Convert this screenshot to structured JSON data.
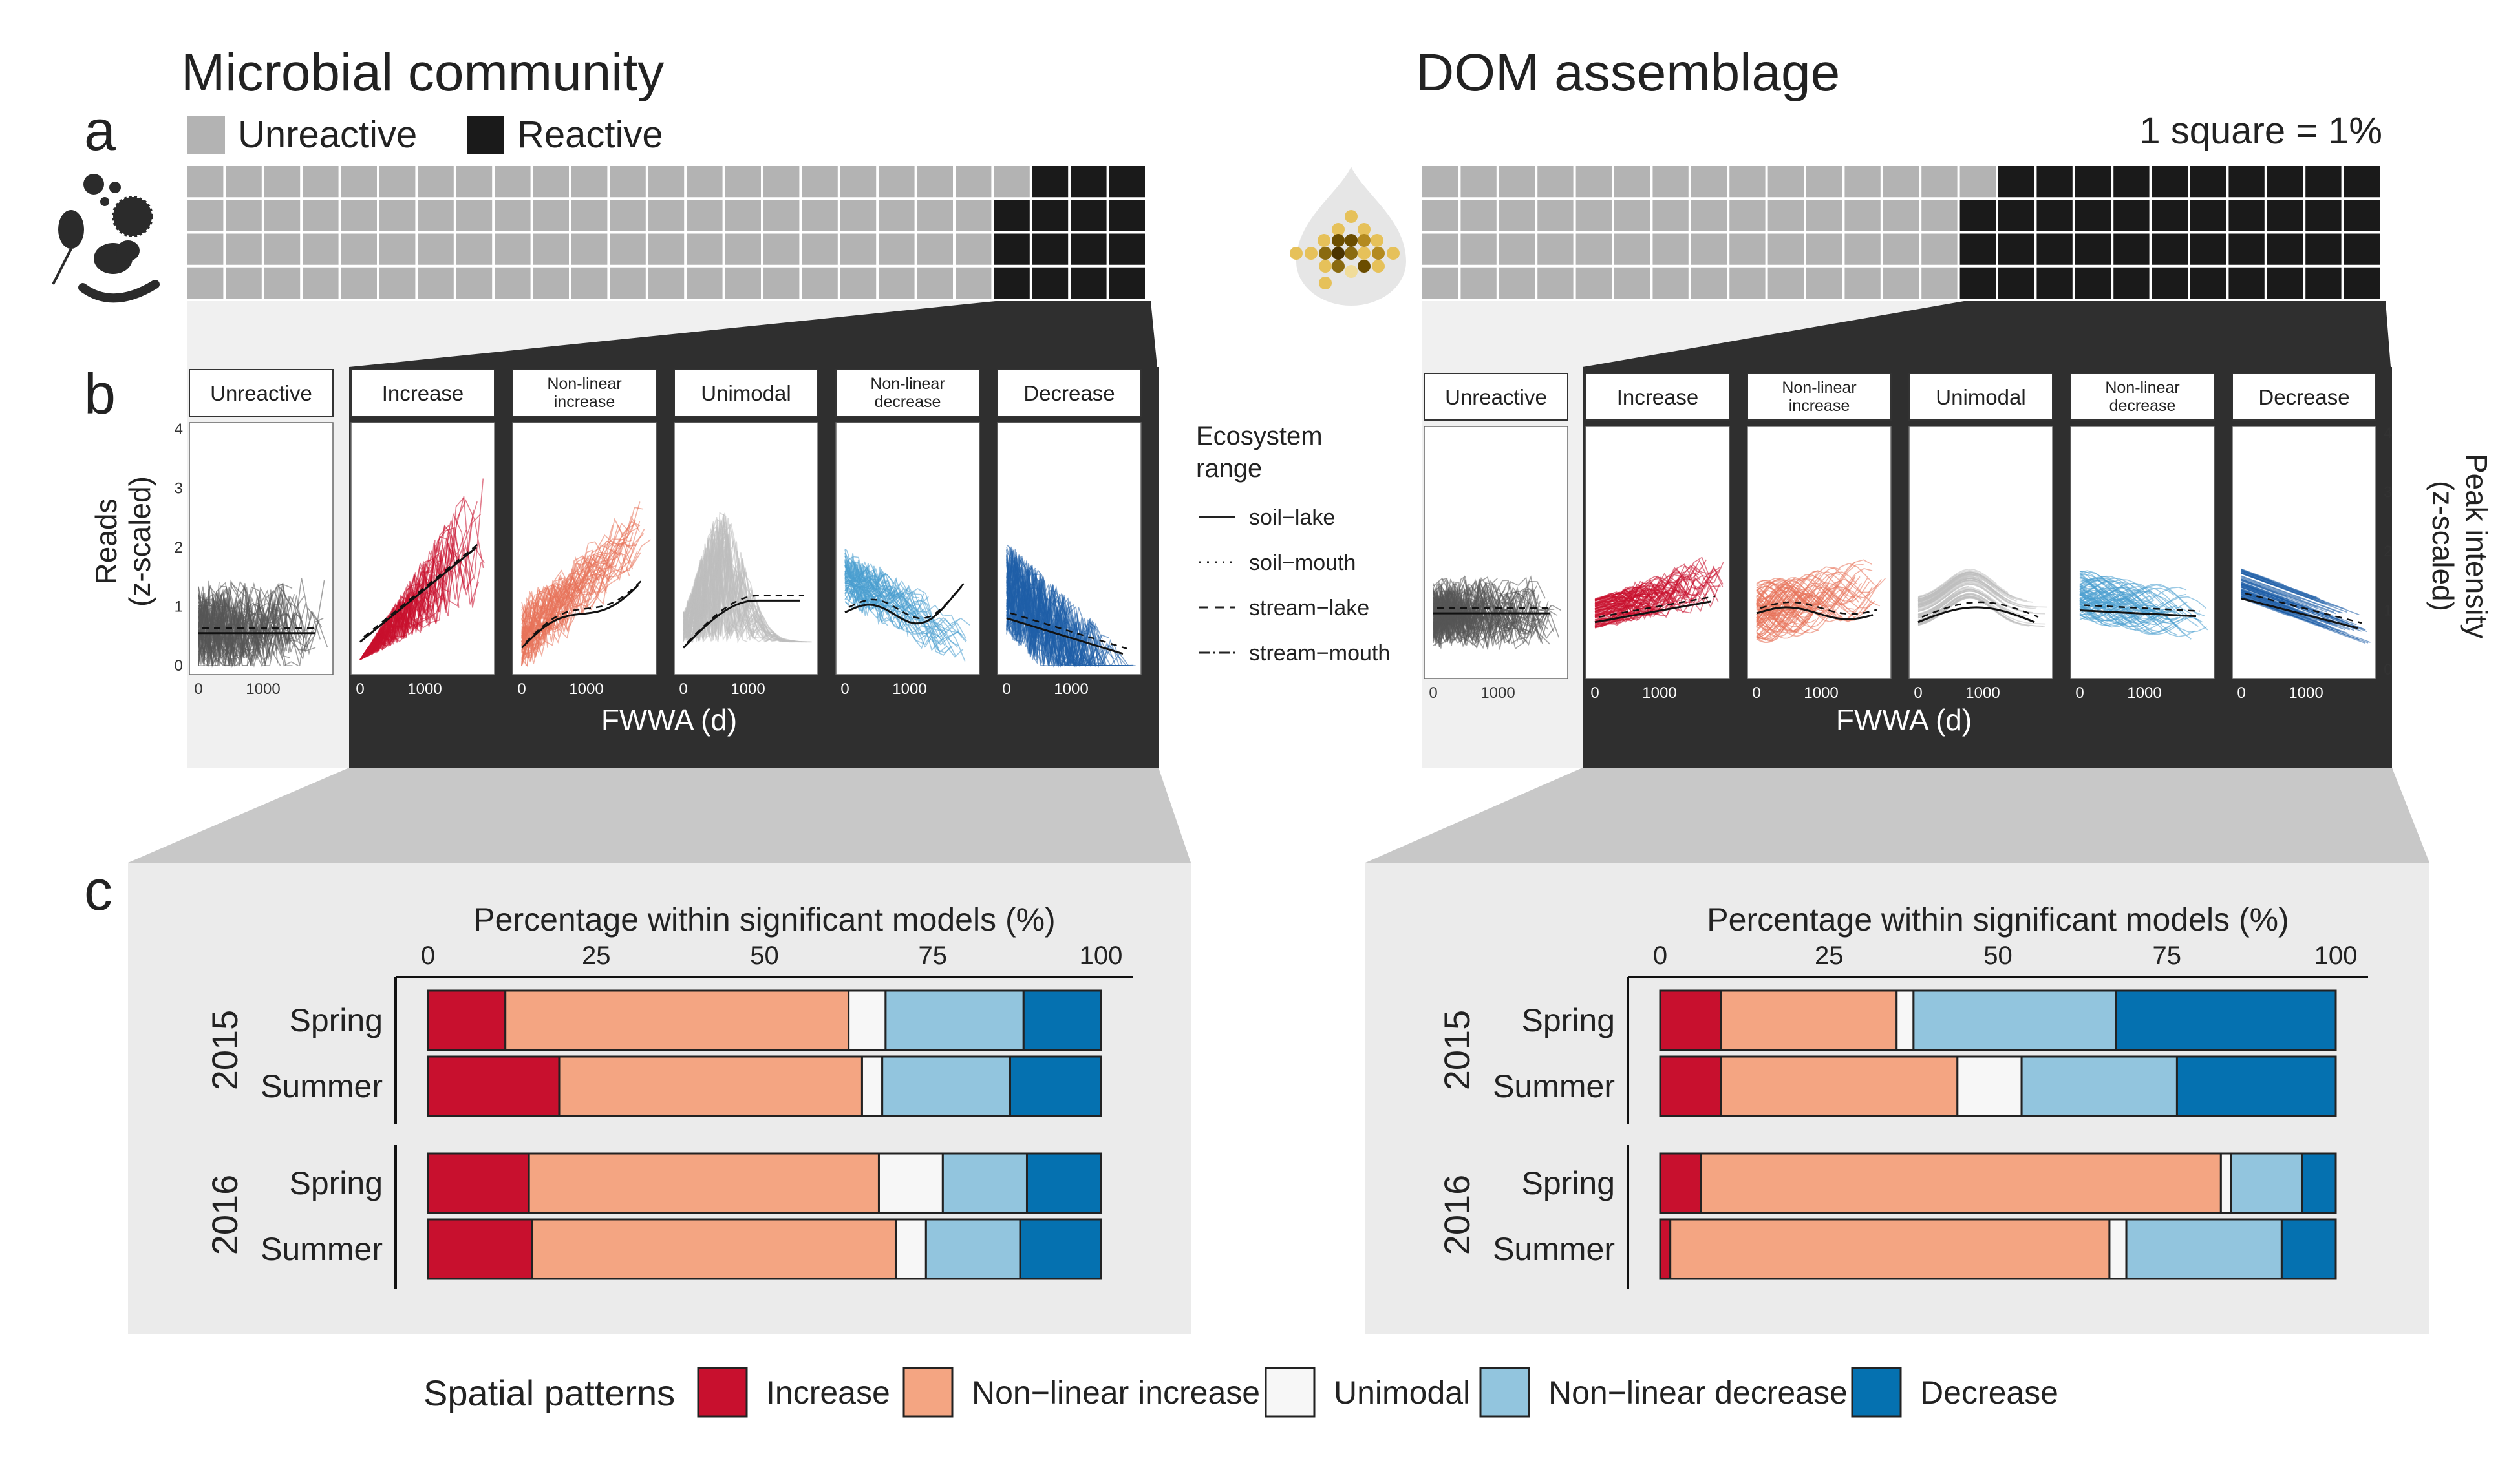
{
  "panel_labels": {
    "a": "a",
    "b": "b",
    "c": "c"
  },
  "titles": {
    "left": "Microbial community",
    "right": "DOM assemblage"
  },
  "waffle_legend": {
    "unreactive": "Unreactive",
    "reactive": "Reactive",
    "scale_note": "1 square = 1%"
  },
  "colors": {
    "unreactive": "#b3b3b3",
    "reactive": "#1a1a1a",
    "Increase": "#c8102e",
    "Non-linear increase": "#f4a582",
    "Unimodal": "#f7f7f7",
    "Non-linear decrease": "#92c5de",
    "Decrease": "#0571b0",
    "curve_unreactive": "#555555",
    "curve_unimodal": "#bdbdbd"
  },
  "facet_strips": {
    "unreactive": "Unreactive",
    "increase": "Increase",
    "nl_increase_1": "Non-linear",
    "nl_increase_2": "increase",
    "unimodal": "Unimodal",
    "nl_decrease_1": "Non-linear",
    "nl_decrease_2": "decrease",
    "decrease": "Decrease"
  },
  "panel_b_axes": {
    "xlabel": "FWWA (d)",
    "ylabel_left_1": "Reads",
    "ylabel_left_2": "(z-scaled)",
    "ylabel_right_1": "Peak intensity",
    "ylabel_right_2": "(z-scaled)",
    "x_tick_0": "0",
    "x_tick_1000": "1000"
  },
  "ecosystem_legend": {
    "title_1": "Ecosystem",
    "title_2": "range",
    "items": [
      "soil−lake",
      "soil−mouth",
      "stream−lake",
      "stream−mouth"
    ]
  },
  "panel_c_axes": {
    "title": "Percentage within significant models (%)",
    "ticks": [
      "0",
      "25",
      "50",
      "75",
      "100"
    ],
    "years": [
      "2015",
      "2016"
    ],
    "seasons": [
      "Spring",
      "Summer"
    ]
  },
  "bottom_legend": {
    "title": "Spatial patterns",
    "items": [
      "Increase",
      "Non−linear increase",
      "Unimodal",
      "Non−linear decrease",
      "Decrease"
    ]
  },
  "chart_data": [
    {
      "type": "waffle",
      "panel": "a-left",
      "name": "Microbial community",
      "unit": "1 square = 1%",
      "categories": [
        "Unreactive",
        "Reactive"
      ],
      "values": [
        85,
        15
      ]
    },
    {
      "type": "waffle",
      "panel": "a-right",
      "name": "DOM assemblage",
      "unit": "1 square = 1%",
      "categories": [
        "Unreactive",
        "Reactive"
      ],
      "values": [
        57,
        43
      ]
    },
    {
      "type": "line",
      "panel": "b-left",
      "facets": [
        "Unreactive",
        "Increase",
        "Non-linear increase",
        "Unimodal",
        "Non-linear decrease",
        "Decrease"
      ],
      "xlabel": "FWWA (d)",
      "ylabel": "Reads (z-scaled)",
      "xlim": [
        0,
        2000
      ],
      "ylim": [
        0,
        4
      ],
      "x_ticks": [
        0,
        1000
      ],
      "y_ticks": [
        0,
        1,
        2,
        3,
        4
      ]
    },
    {
      "type": "line",
      "panel": "b-right",
      "facets": [
        "Unreactive",
        "Increase",
        "Non-linear increase",
        "Unimodal",
        "Non-linear decrease",
        "Decrease"
      ],
      "xlabel": "FWWA (d)",
      "ylabel": "Peak intensity (z-scaled)",
      "xlim": [
        0,
        2000
      ],
      "ylim": [
        0,
        4
      ],
      "x_ticks": [
        0,
        1000
      ],
      "y_ticks": [
        0,
        1,
        2,
        3,
        4
      ]
    },
    {
      "type": "bar",
      "orientation": "horizontal",
      "stacked": true,
      "panel": "c-left",
      "xlabel": "Percentage within significant models (%)",
      "xlim": [
        0,
        100
      ],
      "categories": [
        "Spring 2015",
        "Summer 2015",
        "Spring 2016",
        "Summer 2016"
      ],
      "series": [
        {
          "name": "Increase",
          "values": [
            11.5,
            19.5,
            15,
            15.5
          ]
        },
        {
          "name": "Non−linear increase",
          "values": [
            51,
            45,
            52,
            54
          ]
        },
        {
          "name": "Unimodal",
          "values": [
            5.5,
            3,
            9.5,
            4.5
          ]
        },
        {
          "name": "Non−linear decrease",
          "values": [
            20.5,
            19,
            12.5,
            14
          ]
        },
        {
          "name": "Decrease",
          "values": [
            11.5,
            13.5,
            11,
            12
          ]
        }
      ]
    },
    {
      "type": "bar",
      "orientation": "horizontal",
      "stacked": true,
      "panel": "c-right",
      "xlabel": "Percentage within significant models (%)",
      "xlim": [
        0,
        100
      ],
      "categories": [
        "Spring 2015",
        "Summer 2015",
        "Spring 2016",
        "Summer 2016"
      ],
      "series": [
        {
          "name": "Increase",
          "values": [
            9,
            9,
            6,
            1.5
          ]
        },
        {
          "name": "Non−linear increase",
          "values": [
            26,
            35,
            77,
            65
          ]
        },
        {
          "name": "Unimodal",
          "values": [
            2.5,
            9.5,
            1.5,
            2.5
          ]
        },
        {
          "name": "Non−linear decrease",
          "values": [
            30,
            23,
            10.5,
            23
          ]
        },
        {
          "name": "Decrease",
          "values": [
            32.5,
            23.5,
            5,
            8
          ]
        }
      ]
    }
  ]
}
